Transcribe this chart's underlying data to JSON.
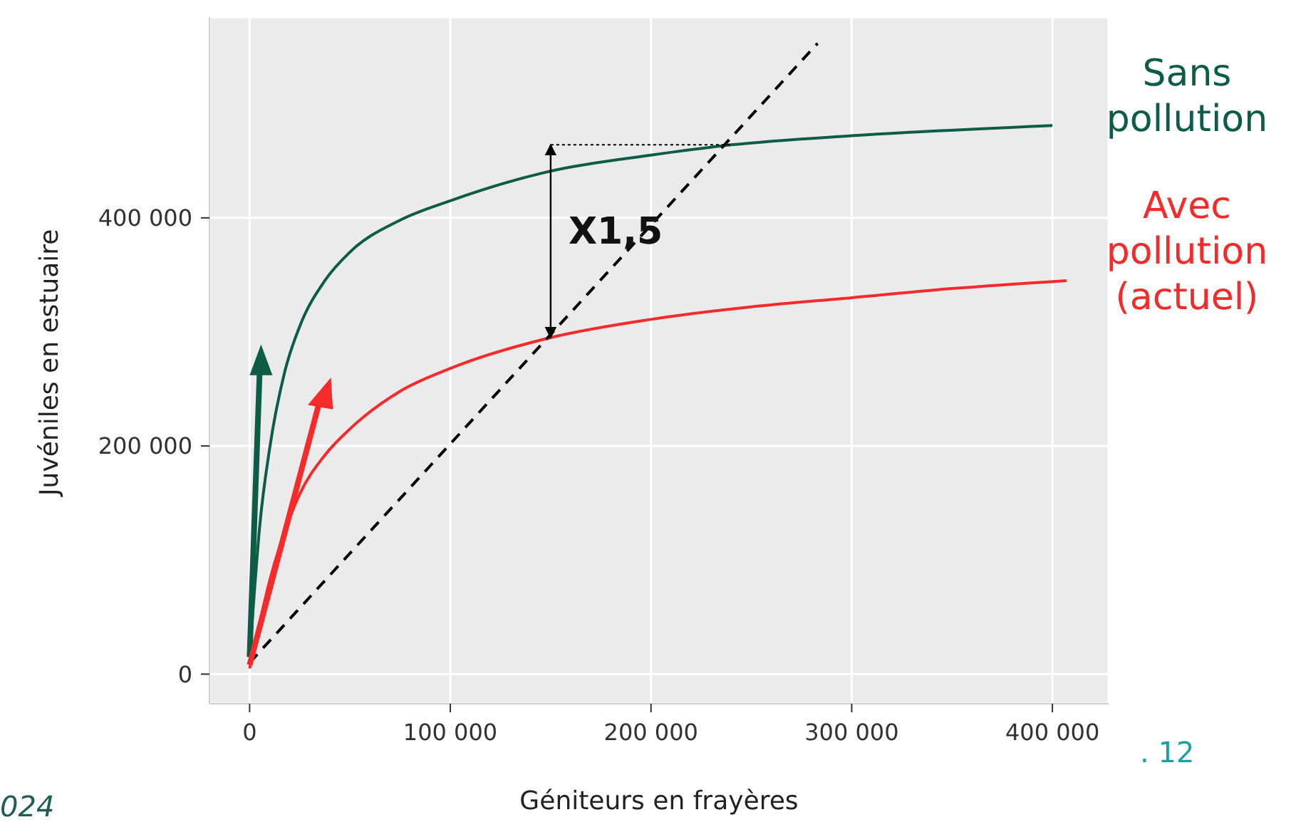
{
  "chart_data": {
    "type": "line",
    "xlabel": "Géniteurs en frayères",
    "ylabel": "Juvéniles en estuaire",
    "xlim": [
      -20000,
      428000
    ],
    "ylim": [
      -26000,
      576000
    ],
    "xticks": [
      0,
      {
        "value": 100000,
        "label": "100 000"
      },
      {
        "value": 200000,
        "label": "200 000"
      },
      {
        "value": 300000,
        "label": "300 000"
      },
      {
        "value": 400000,
        "label": "400 000"
      }
    ],
    "yticks": [
      0,
      {
        "value": 200000,
        "label": "200 000"
      },
      {
        "value": 400000,
        "label": "400 000"
      }
    ],
    "grid": true,
    "marker": "none",
    "series": [
      {
        "name": "Sans pollution",
        "color": "#0d5c46",
        "line_style": "solid",
        "x": [
          0,
          2500,
          5000,
          10000,
          17500,
          25000,
          37500,
          50000,
          75000,
          100000,
          150000,
          200000,
          240000,
          300000,
          400000
        ],
        "values": [
          15000,
          75000,
          129000,
          198000,
          265000,
          305000,
          345000,
          370000,
          398000,
          415000,
          441000,
          455000,
          464000,
          472000,
          481000
        ]
      },
      {
        "name": "Avec pollution (actuel)",
        "color": "#f52a2a",
        "line_style": "solid",
        "x": [
          0,
          5000,
          10000,
          17500,
          25000,
          37500,
          50000,
          75000,
          100000,
          150000,
          200000,
          250000,
          300000,
          350000,
          407000
        ],
        "values": [
          5000,
          45000,
          82000,
          125000,
          158000,
          192000,
          215000,
          248000,
          268000,
          295000,
          311000,
          322000,
          330000,
          338000,
          345000
        ]
      },
      {
        "color": "#000000",
        "line_style": "dashed",
        "x": [
          0,
          283000
        ],
        "values": [
          10000,
          553000
        ]
      }
    ],
    "annotations": [
      "X1,5",
      "024",
      ". 12"
    ]
  }
}
